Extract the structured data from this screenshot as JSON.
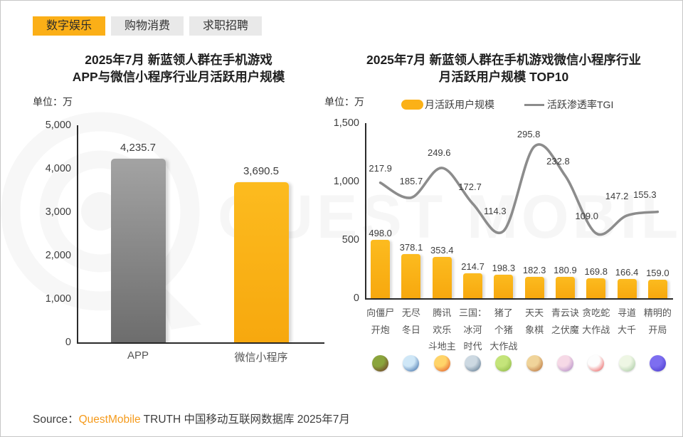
{
  "page": {
    "watermark_text": "QUEST MOBILE"
  },
  "tabs": [
    {
      "key": "digital-entertainment",
      "label": "数字娱乐",
      "active": true
    },
    {
      "key": "shopping-consumption",
      "label": "购物消费",
      "active": false
    },
    {
      "key": "job-recruitment",
      "label": "求职招聘",
      "active": false
    }
  ],
  "colors": {
    "accent_orange": "#FBAF17",
    "bar_orange_top": "#FCBB1F",
    "bar_orange_bottom": "#F7A80E",
    "bar_gray_top": "#A3A3A3",
    "bar_gray_bottom": "#6D6D6D",
    "line_gray": "#8C8C8C",
    "tab_inactive_bg": "#E9E9E9"
  },
  "chart_data": [
    {
      "type": "bar",
      "title_lines": [
        "2025年7月 新蓝领人群在手机游戏",
        "APP与微信小程序行业月活跃用户规模"
      ],
      "unit": "单位：万",
      "categories": [
        "APP",
        "微信小程序"
      ],
      "values": [
        4235.7,
        3690.5
      ],
      "value_labels": [
        "4,235.7",
        "3,690.5"
      ],
      "bar_styles": [
        "gray",
        "orange"
      ],
      "ylim": [
        0,
        5000
      ],
      "yticks": [
        {
          "v": 0,
          "label": "0"
        },
        {
          "v": 1000,
          "label": "1,000"
        },
        {
          "v": 2000,
          "label": "2,000"
        },
        {
          "v": 3000,
          "label": "3,000"
        },
        {
          "v": 4000,
          "label": "4,000"
        },
        {
          "v": 5000,
          "label": "5,000"
        }
      ],
      "grid": false,
      "legend": null
    },
    {
      "type": "bar+line",
      "title_lines": [
        "2025年7月 新蓝领人群在手机游戏微信小程序行业",
        "月活跃用户规模 TOP10"
      ],
      "unit": "单位：万",
      "legend": [
        {
          "name": "月活跃用户规模",
          "marker": "bar"
        },
        {
          "name": "活跃渗透率TGI",
          "marker": "line"
        }
      ],
      "categories": [
        "向僵尸开炮",
        "无尽冬日",
        "腾讯欢乐斗地主",
        "三国：冰河时代",
        "猪了个猪大作战",
        "天天象棋",
        "青云诀之伏魔",
        "贪吃蛇大作战",
        "寻道大千",
        "精明的开局"
      ],
      "category_label_lines": [
        [
          "向僵尸",
          "开炮"
        ],
        [
          "无尽",
          "冬日"
        ],
        [
          "腾讯",
          "欢乐",
          "斗地主"
        ],
        [
          "三国：",
          "冰河",
          "时代"
        ],
        [
          "猪了",
          "个猪",
          "大作战"
        ],
        [
          "天天",
          "象棋"
        ],
        [
          "青云诀",
          "之伏魔"
        ],
        [
          "贪吃蛇",
          "大作战"
        ],
        [
          "寻道",
          "大千"
        ],
        [
          "精明的",
          "开局"
        ]
      ],
      "series": [
        {
          "name": "月活跃用户规模",
          "type": "bar",
          "values": [
            498.0,
            378.1,
            353.4,
            214.7,
            198.3,
            182.3,
            180.9,
            169.8,
            166.4,
            159.0
          ],
          "labels": [
            "498.0",
            "378.1",
            "353.4",
            "214.7",
            "198.3",
            "182.3",
            "180.9",
            "169.8",
            "166.4",
            "159.0"
          ]
        },
        {
          "name": "活跃渗透率TGI",
          "type": "line",
          "values": [
            217.9,
            185.7,
            249.6,
            172.7,
            114.3,
            295.8,
            232.8,
            109.0,
            147.2,
            155.3
          ],
          "labels": [
            "217.9",
            "185.7",
            "249.6",
            "172.7",
            "114.3",
            "295.8",
            "232.8",
            "109.0",
            "147.2",
            "155.3"
          ]
        }
      ],
      "ylim": [
        0,
        1500
      ],
      "yticks": [
        {
          "v": 0,
          "label": "0"
        },
        {
          "v": 500,
          "label": "500"
        },
        {
          "v": 1000,
          "label": "1,000"
        },
        {
          "v": 1500,
          "label": "1,500"
        }
      ],
      "icons": [
        {
          "c1": "#8aa43c",
          "c2": "#6b2d24"
        },
        {
          "c1": "#cfe7f7",
          "c2": "#2c5f9e"
        },
        {
          "c1": "#ffd469",
          "c2": "#e04a22"
        },
        {
          "c1": "#cdd9e2",
          "c2": "#4f6c86"
        },
        {
          "c1": "#c4e47a",
          "c2": "#86b23e"
        },
        {
          "c1": "#f0d49a",
          "c2": "#b0622c"
        },
        {
          "c1": "#f6d9e6",
          "c2": "#a77fc2"
        },
        {
          "c1": "#fdfdfd",
          "c2": "#e84545"
        },
        {
          "c1": "#eef6e4",
          "c2": "#9ec49a"
        },
        {
          "c1": "#7d6ef0",
          "c2": "#4434c8"
        }
      ]
    }
  ],
  "source": {
    "prefix": "Source：",
    "brand": "QuestMobile",
    "suffix": " TRUTH 中国移动互联网数据库 2025年7月"
  }
}
